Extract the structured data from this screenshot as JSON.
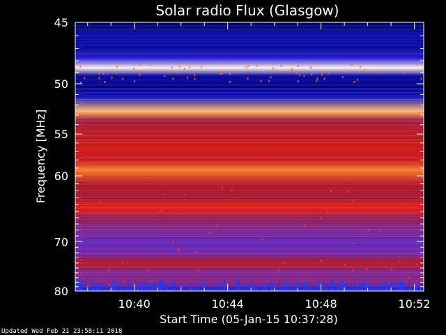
{
  "chart_data": {
    "type": "heatmap",
    "title": "Solar radio Flux (Glasgow)",
    "xlabel": "Start Time (05-Jan-15 10:37:28)",
    "ylabel": "Frequency [MHz]",
    "footer": "Updated Wed Feb 21 23:58:11 2018",
    "x_ticks": [
      "10:40",
      "10:44",
      "10:48",
      "10:52"
    ],
    "x_tick_minutes": [
      40,
      44,
      48,
      52
    ],
    "x_range_minutes": [
      37.47,
      52.4
    ],
    "y_ticks": [
      45,
      50,
      55,
      60,
      70,
      80
    ],
    "y_range_mhz": [
      45,
      80
    ],
    "y_scale": "reciprocal",
    "colormap": [
      "#000010",
      "#00008a",
      "#2020e0",
      "#7a2bb0",
      "#b01a2a",
      "#ff2010",
      "#ff9a30",
      "#ffffff"
    ],
    "bands": [
      {
        "mhz": 45.0,
        "level": 0.1
      },
      {
        "mhz": 46.0,
        "level": 0.22
      },
      {
        "mhz": 47.0,
        "level": 0.18
      },
      {
        "mhz": 47.8,
        "level": 0.3
      },
      {
        "mhz": 48.6,
        "level": 0.98
      },
      {
        "mhz": 49.3,
        "level": 0.2
      },
      {
        "mhz": 50.3,
        "level": 0.15
      },
      {
        "mhz": 51.2,
        "level": 0.25
      },
      {
        "mhz": 52.6,
        "level": 0.9
      },
      {
        "mhz": 53.5,
        "level": 0.55
      },
      {
        "mhz": 55.0,
        "level": 0.6
      },
      {
        "mhz": 56.5,
        "level": 0.66
      },
      {
        "mhz": 58.0,
        "level": 0.62
      },
      {
        "mhz": 59.3,
        "level": 0.82
      },
      {
        "mhz": 61.0,
        "level": 0.58
      },
      {
        "mhz": 63.0,
        "level": 0.56
      },
      {
        "mhz": 64.4,
        "level": 0.7
      },
      {
        "mhz": 66.0,
        "level": 0.52
      },
      {
        "mhz": 68.0,
        "level": 0.45
      },
      {
        "mhz": 70.0,
        "level": 0.4
      },
      {
        "mhz": 72.0,
        "level": 0.42
      },
      {
        "mhz": 74.0,
        "level": 0.6
      },
      {
        "mhz": 76.0,
        "level": 0.45
      },
      {
        "mhz": 78.0,
        "level": 0.48
      },
      {
        "mhz": 79.5,
        "level": 0.3
      },
      {
        "mhz": 80.0,
        "level": 0.25
      }
    ]
  }
}
